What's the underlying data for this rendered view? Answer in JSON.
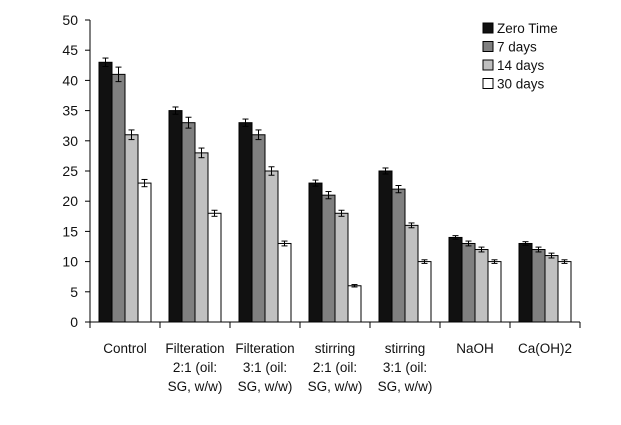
{
  "chart_data": {
    "type": "bar",
    "title": "",
    "xlabel": "",
    "ylabel": "",
    "ylim": [
      0,
      50
    ],
    "yticks": [
      0,
      5,
      10,
      15,
      20,
      25,
      30,
      35,
      40,
      45,
      50
    ],
    "grid": false,
    "legend_position": "top-right",
    "categories": [
      [
        "Control"
      ],
      [
        "Filteration",
        "2:1 (oil:",
        "SG, w/w)"
      ],
      [
        "Filteration",
        "3:1 (oil:",
        "SG, w/w)"
      ],
      [
        "stirring",
        "2:1 (oil:",
        "SG, w/w)"
      ],
      [
        "stirring",
        "3:1 (oil:",
        "SG, w/w)"
      ],
      [
        "NaOH"
      ],
      [
        "Ca(OH)2"
      ]
    ],
    "series": [
      {
        "name": "Zero Time",
        "color": "#111111",
        "values": [
          43,
          35,
          33,
          23,
          25,
          14,
          13
        ],
        "errors": [
          0.7,
          0.6,
          0.6,
          0.5,
          0.5,
          0.3,
          0.3
        ]
      },
      {
        "name": "7 days",
        "color": "#808080",
        "values": [
          41,
          33,
          31,
          21,
          22,
          13,
          12
        ],
        "errors": [
          1.2,
          0.9,
          0.8,
          0.6,
          0.6,
          0.4,
          0.4
        ]
      },
      {
        "name": "14 days",
        "color": "#c0c0c0",
        "values": [
          31,
          28,
          25,
          18,
          16,
          12,
          11
        ],
        "errors": [
          0.8,
          0.8,
          0.7,
          0.5,
          0.4,
          0.4,
          0.4
        ]
      },
      {
        "name": "30 days",
        "color": "#ffffff",
        "values": [
          23,
          18,
          13,
          6,
          10,
          10,
          10
        ],
        "errors": [
          0.6,
          0.5,
          0.4,
          0.2,
          0.3,
          0.3,
          0.3
        ]
      }
    ]
  }
}
